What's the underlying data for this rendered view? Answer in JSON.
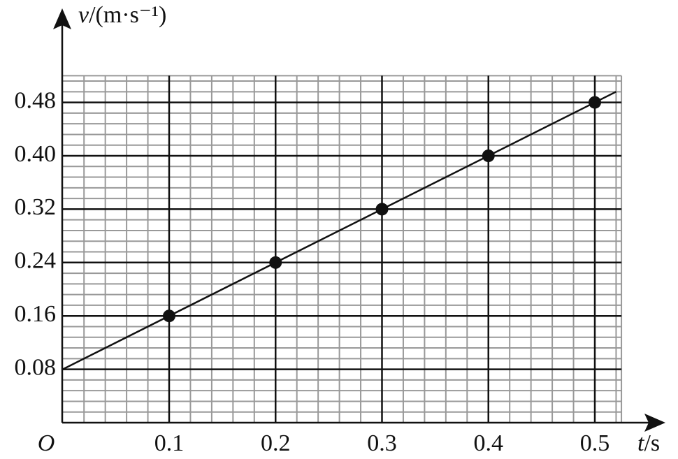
{
  "chart_data": {
    "type": "scatter",
    "origin_label": "O",
    "xlabel": {
      "symbol": "t",
      "unit": "/s"
    },
    "ylabel": {
      "symbol": "v",
      "unit": "/(m·s⁻¹)"
    },
    "xlim": [
      0,
      0.525
    ],
    "ylim": [
      0,
      0.52
    ],
    "xticks": [
      0.1,
      0.2,
      0.3,
      0.4,
      0.5
    ],
    "yticks": [
      {
        "value": 0.08,
        "label": "0.08"
      },
      {
        "value": 0.16,
        "label": "0.16"
      },
      {
        "value": 0.24,
        "label": "0.24"
      },
      {
        "value": 0.32,
        "label": "0.32"
      },
      {
        "value": 0.4,
        "label": "0.40"
      },
      {
        "value": 0.48,
        "label": "0.48"
      }
    ],
    "grid": true,
    "minor_grid": {
      "x": 0.02,
      "y": 0.016,
      "color": "#999999"
    },
    "series": [
      {
        "type": "scatter",
        "color": "#111111",
        "x": [
          0.1,
          0.2,
          0.3,
          0.4,
          0.5
        ],
        "values": [
          0.16,
          0.24,
          0.32,
          0.4,
          0.48
        ]
      },
      {
        "type": "line",
        "color": "#111111",
        "x": [
          0,
          0.52
        ],
        "values": [
          0.08,
          0.496
        ]
      }
    ]
  }
}
